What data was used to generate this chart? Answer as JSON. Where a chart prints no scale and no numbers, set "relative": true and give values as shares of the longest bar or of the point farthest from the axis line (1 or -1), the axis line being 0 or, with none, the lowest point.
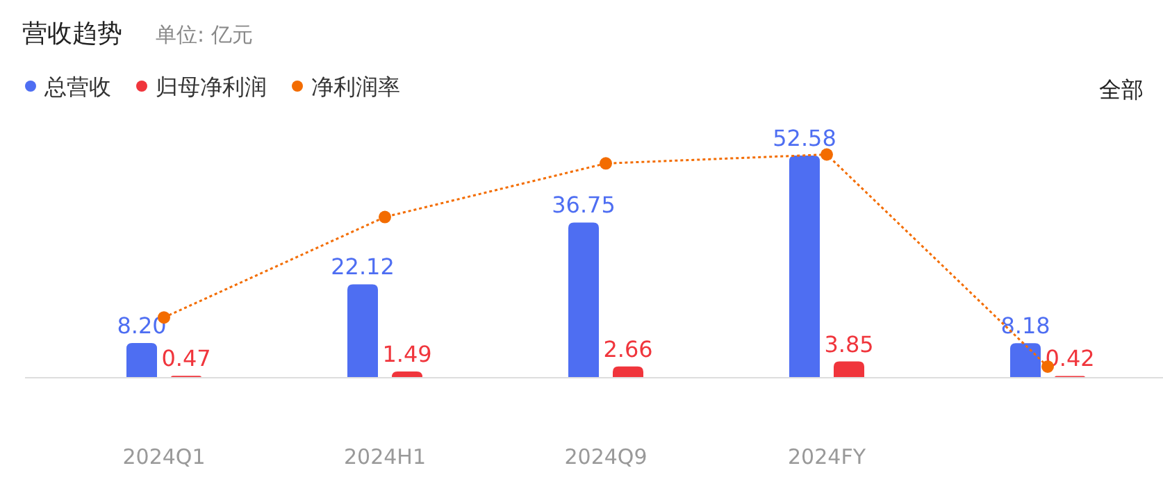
{
  "chart_data": [
    {
      "type": "bar",
      "title": "营收趋势",
      "subtitle": "单位: 亿元",
      "annotations": [
        "全部"
      ],
      "categories": [
        "2024Q1",
        "2024H1",
        "2024Q9",
        "2024FY",
        null
      ],
      "series": [
        {
          "name": "总营收",
          "color": "#4e6ef2",
          "values": [
            8.2,
            22.12,
            36.75,
            52.58,
            8.18
          ],
          "value_labels": [
            "8.20",
            "22.12",
            "36.75",
            "52.58",
            "8.18"
          ]
        },
        {
          "name": "归母净利润",
          "color": "#f0353c",
          "values": [
            0.47,
            1.49,
            2.66,
            3.85,
            0.42
          ],
          "value_labels": [
            "0.47",
            "1.49",
            "2.66",
            "3.85",
            "0.42"
          ]
        }
      ],
      "legend": "top left"
    },
    {
      "type": "line",
      "relative": true,
      "categories": [
        null,
        null,
        null,
        null,
        null
      ],
      "marker": "circle",
      "line_style": "dotted",
      "legend": "top left",
      "series": [
        {
          "name": "净利润率",
          "color": "#f36c00",
          "values": [
            0.27,
            0.72,
            0.96,
            1.0,
            0.05
          ]
        }
      ]
    }
  ]
}
